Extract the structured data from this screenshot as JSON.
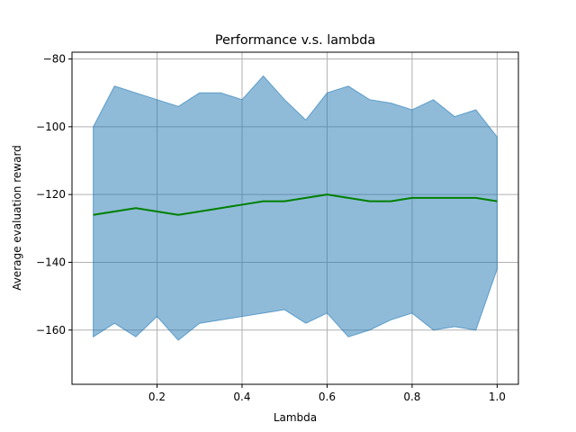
{
  "chart_data": {
    "type": "line",
    "title": "Performance v.s. lambda",
    "xlabel": "Lambda",
    "ylabel": "Average evaluation reward",
    "xlim": [
      -0.0,
      1.05
    ],
    "ylim": [
      -176,
      -78
    ],
    "xticks": [
      0.2,
      0.4,
      0.6,
      0.8,
      1.0
    ],
    "xtick_labels": [
      "0.2",
      "0.4",
      "0.6",
      "0.8",
      "1.0"
    ],
    "yticks": [
      -160,
      -140,
      -120,
      -100,
      -80
    ],
    "ytick_labels": [
      "−160",
      "−140",
      "−120",
      "−100",
      "−80"
    ],
    "grid": true,
    "colors": {
      "mean": "#008000",
      "band_fill": "#1f77b4",
      "band_edge": "#1f77b4"
    },
    "series": [
      {
        "kind": "band",
        "x": [
          0.05,
          0.1,
          0.15,
          0.2,
          0.25,
          0.3,
          0.35,
          0.4,
          0.45,
          0.5,
          0.55,
          0.6,
          0.65,
          0.7,
          0.75,
          0.8,
          0.85,
          0.9,
          0.95,
          1.0
        ],
        "upper": [
          -100,
          -88,
          -90,
          -92,
          -94,
          -90,
          -90,
          -92,
          -85,
          -92,
          -98,
          -90,
          -88,
          -92,
          -93,
          -95,
          -92,
          -97,
          -95,
          -103
        ],
        "lower": [
          -162,
          -158,
          -162,
          -156,
          -163,
          -158,
          -157,
          -156,
          -155,
          -154,
          -158,
          -155,
          -162,
          -160,
          -157,
          -155,
          -160,
          -159,
          -160,
          -142
        ]
      },
      {
        "kind": "line",
        "x": [
          0.05,
          0.1,
          0.15,
          0.2,
          0.25,
          0.3,
          0.35,
          0.4,
          0.45,
          0.5,
          0.55,
          0.6,
          0.65,
          0.7,
          0.75,
          0.8,
          0.85,
          0.9,
          0.95,
          1.0
        ],
        "y": [
          -126,
          -125,
          -124,
          -125,
          -126,
          -125,
          -124,
          -123,
          -122,
          -122,
          -121,
          -120,
          -121,
          -122,
          -122,
          -121,
          -121,
          -121,
          -121,
          -122
        ]
      }
    ]
  }
}
